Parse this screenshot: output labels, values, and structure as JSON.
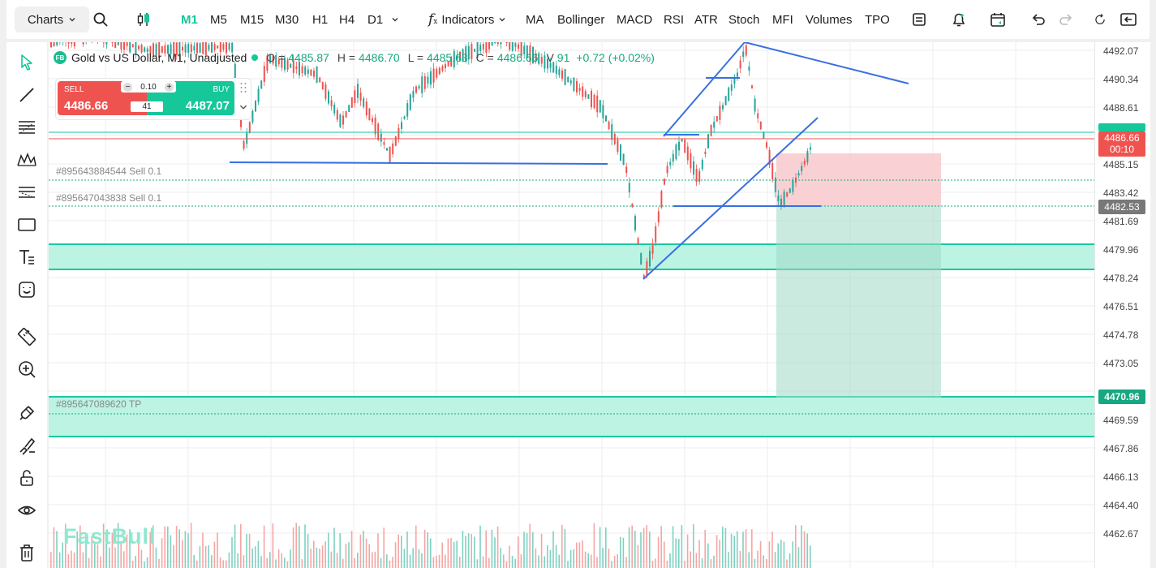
{
  "toolbar": {
    "charts_label": "Charts",
    "timeframes": [
      {
        "label": "M1",
        "active": true
      },
      {
        "label": "M5",
        "active": false
      },
      {
        "label": "M15",
        "active": false
      },
      {
        "label": "M30",
        "active": false
      },
      {
        "label": "H1",
        "active": false
      },
      {
        "label": "H4",
        "active": false
      },
      {
        "label": "D1",
        "active": false
      }
    ],
    "indicators_label": "Indicators",
    "indicator_items": [
      "MA",
      "Bollinger",
      "MACD",
      "RSI",
      "ATR",
      "Stoch",
      "MFI",
      "Volumes",
      "TPO"
    ]
  },
  "legend": {
    "badge": "FB",
    "title": "Gold vs US Dollar, M1, Unadjusted",
    "open_label": "O =",
    "open": "4485.87",
    "high_label": "H =",
    "high": "4486.70",
    "low_label": "L =",
    "low": "4485.63",
    "close_label": "C =",
    "close": "4486.66",
    "volume_label": "V",
    "volume": "91",
    "change": "+0.72 (+0.02%)"
  },
  "trade_panel": {
    "sell_label": "SELL",
    "sell_price": "4486.66",
    "buy_label": "BUY",
    "buy_price": "4487.07",
    "lot": "0.10",
    "spread": "41"
  },
  "orders": {
    "sell_1": "#895643884544 Sell 0.1",
    "sell_2": "#895647043838 Sell 0.1",
    "tp": "#895647089620 TP"
  },
  "price_axis": {
    "ticks": [
      "4492.07",
      "4490.34",
      "4488.61",
      "4485.15",
      "4483.42",
      "4481.69",
      "4479.96",
      "4478.24",
      "4476.51",
      "4474.78",
      "4473.05",
      "4469.59",
      "4467.86",
      "4466.13",
      "4464.40",
      "4462.67"
    ],
    "current_price": "4486.66",
    "countdown": "00:10",
    "entry_price": "4482.53",
    "tp_price": "4470.96"
  },
  "watermark": "FastBull",
  "colors": {
    "accent": "#16c79a",
    "bull": "#26a69a",
    "bear": "#ef5350",
    "drawing": "#3a6fe0",
    "zone": "#b8f2e2"
  }
}
